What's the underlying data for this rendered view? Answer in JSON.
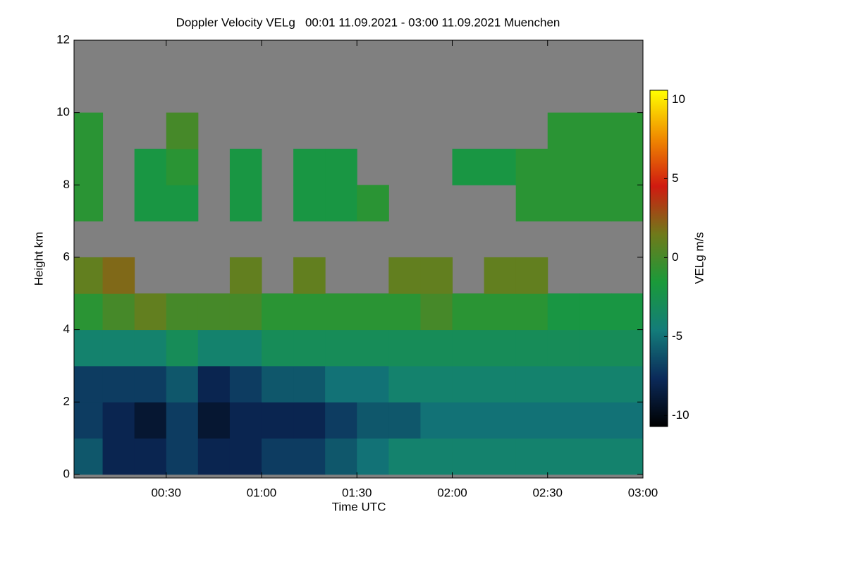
{
  "chart_data": {
    "type": "heatmap",
    "title": "Doppler Velocity VELg   00:01 11.09.2021 - 03:00 11.09.2021 Muenchen",
    "x_label": "Time UTC",
    "y_label": "Height km",
    "colorbar_label": "VELg m/s",
    "xbins": [
      0,
      10,
      20,
      30,
      40,
      50,
      60,
      70,
      80,
      90,
      100,
      110,
      120,
      130,
      140,
      150,
      160,
      170,
      180
    ],
    "ybins": [
      0,
      1,
      2,
      3,
      4,
      5,
      6,
      7,
      8,
      9,
      10,
      11,
      12
    ],
    "z": [
      [
        -6,
        -8,
        -8,
        -7,
        -8,
        -8,
        -7,
        -7,
        -6,
        -5,
        -4,
        -4,
        -4,
        -4,
        -4,
        -4,
        -4,
        -4
      ],
      [
        -7,
        -8,
        -9,
        -7,
        -9,
        -8,
        -8,
        -8,
        -7,
        -6,
        -6,
        -5,
        -5,
        -5,
        -5,
        -5,
        -5,
        -5
      ],
      [
        -7,
        -7,
        -7,
        -6,
        -8,
        -7,
        -6,
        -6,
        -5,
        -5,
        -4,
        -4,
        -4,
        -4,
        -4,
        -4,
        -4,
        -4
      ],
      [
        -4,
        -4,
        -4,
        -3,
        -4,
        -4,
        -3,
        -3,
        -3,
        -3,
        -3,
        -3,
        -3,
        -3,
        -3,
        -3,
        -3,
        -3
      ],
      [
        -1,
        0,
        1,
        0,
        0,
        0,
        -1,
        -1,
        -1,
        -1,
        -1,
        0,
        -1,
        -1,
        -1,
        -2,
        -2,
        -2
      ],
      [
        1,
        2,
        null,
        null,
        null,
        1,
        null,
        1,
        null,
        null,
        1,
        1,
        null,
        1,
        1,
        null,
        null,
        null
      ],
      [
        null,
        null,
        null,
        null,
        null,
        null,
        null,
        null,
        null,
        null,
        null,
        null,
        null,
        null,
        null,
        null,
        null,
        null
      ],
      [
        -1,
        null,
        -2,
        -2,
        null,
        -2,
        null,
        -2,
        -2,
        -1,
        null,
        null,
        null,
        null,
        -1,
        -1,
        -1,
        -1
      ],
      [
        -1,
        null,
        -2,
        -1,
        null,
        -2,
        null,
        -2,
        -2,
        null,
        null,
        null,
        -2,
        -2,
        -1,
        -1,
        -1,
        -1
      ],
      [
        -1,
        null,
        null,
        0,
        null,
        null,
        null,
        null,
        null,
        null,
        null,
        null,
        null,
        null,
        null,
        -1,
        -1,
        -1
      ],
      [
        null,
        null,
        null,
        null,
        null,
        null,
        null,
        null,
        null,
        null,
        null,
        null,
        null,
        null,
        null,
        null,
        null,
        null
      ],
      [
        null,
        null,
        null,
        null,
        null,
        null,
        null,
        null,
        null,
        null,
        null,
        null,
        null,
        null,
        null,
        null,
        null,
        null
      ]
    ],
    "xlim": [
      1,
      180
    ],
    "xticks": [
      {
        "value": 30,
        "label": "00:30"
      },
      {
        "value": 60,
        "label": "01:00"
      },
      {
        "value": 90,
        "label": "01:30"
      },
      {
        "value": 120,
        "label": "02:00"
      },
      {
        "value": 150,
        "label": "02:30"
      },
      {
        "value": 180,
        "label": "03:00"
      }
    ],
    "ylim": [
      -0.1,
      12
    ],
    "yticks": [
      0,
      2,
      4,
      6,
      8,
      10,
      12
    ],
    "clim": [
      -10.7,
      10.6
    ],
    "cticks": [
      -10,
      -5,
      0,
      5,
      10
    ],
    "colormap": [
      "#000000",
      "#0b2a5a",
      "#137c7a",
      "#1a9a3a",
      "#6f7a1a",
      "#d01a10",
      "#f08a00",
      "#ffff00"
    ],
    "nan_color": "#808080"
  }
}
